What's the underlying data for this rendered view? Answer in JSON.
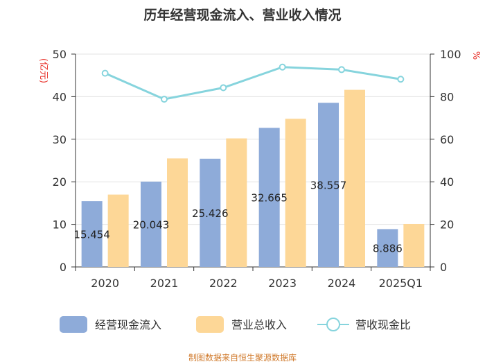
{
  "title": "历年经营现金流入、营业收入情况",
  "source": "制图数据来自恒生聚源数据库",
  "chart_data": {
    "type": "bar",
    "categories": [
      "2020",
      "2021",
      "2022",
      "2023",
      "2024",
      "2025Q1"
    ],
    "series": [
      {
        "name": "经营现金流入",
        "kind": "bar",
        "axis": "left",
        "color": "#8eabd9",
        "values": [
          15.454,
          20.043,
          25.426,
          32.665,
          38.557,
          8.886
        ],
        "labels": [
          "15.454",
          "20.043",
          "25.426",
          "32.665",
          "38.557",
          "8.886"
        ]
      },
      {
        "name": "营业总收入",
        "kind": "bar",
        "axis": "left",
        "color": "#fdd797",
        "values": [
          17.0,
          25.5,
          30.2,
          34.8,
          41.6,
          10.1
        ]
      },
      {
        "name": "营收现金比",
        "kind": "line",
        "axis": "right",
        "color": "#86d4dd",
        "values": [
          91.0,
          78.8,
          84.2,
          93.9,
          92.7,
          88.2
        ]
      }
    ],
    "y_left": {
      "unit": "(亿元)",
      "min": 0,
      "max": 50,
      "ticks": [
        0,
        10,
        20,
        30,
        40,
        50
      ]
    },
    "y_right": {
      "unit": "%",
      "min": 0,
      "max": 100,
      "ticks": [
        0,
        20,
        40,
        60,
        80,
        100
      ]
    },
    "legend_position": "bottom",
    "grid": true
  }
}
